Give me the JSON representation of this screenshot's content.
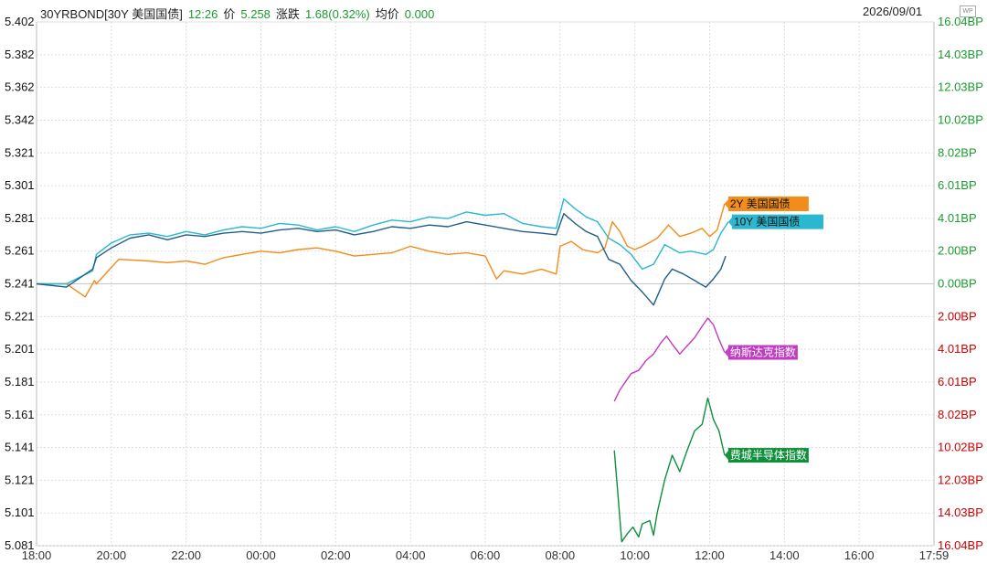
{
  "header": {
    "symbol": "30YRBOND[30Y 美国国债]",
    "time": "12:26",
    "price_label": "价",
    "price": "5.258",
    "change_label": "涨跌",
    "change": "1.68(0.32%)",
    "avg_label": "均价",
    "avg": "0.000",
    "date": "2026/09/01"
  },
  "icons": {
    "corner": "wp-icon"
  },
  "colors": {
    "up_axis": "#1a9c2e",
    "down_axis": "#cc0000",
    "left_axis": "#111111",
    "2y": "#f28c1a",
    "10y": "#2bb7cf",
    "30y": "#1f5f87",
    "ndx": "#c03cc0",
    "sox": "#0f8f3a"
  },
  "chart_data": {
    "type": "line",
    "x_ticks": [
      "18:00",
      "20:00",
      "22:00",
      "00:00",
      "02:00",
      "04:00",
      "06:00",
      "08:00",
      "10:00",
      "12:00",
      "14:00",
      "16:00",
      "17:59"
    ],
    "left_axis": {
      "ticks": [
        "5.402",
        "5.382",
        "5.362",
        "5.342",
        "5.321",
        "5.301",
        "5.281",
        "5.261",
        "5.241",
        "5.221",
        "5.201",
        "5.181",
        "5.161",
        "5.141",
        "5.121",
        "5.101",
        "5.081"
      ],
      "range": [
        5.081,
        5.402
      ],
      "baseline": 5.241
    },
    "right_axis": {
      "ticks": [
        "16.04BP",
        "14.03BP",
        "12.03BP",
        "10.02BP",
        "8.02BP",
        "6.01BP",
        "4.01BP",
        "2.00BP",
        "0.00BP",
        "2.00BP",
        "4.01BP",
        "6.01BP",
        "8.02BP",
        "10.02BP",
        "12.03BP",
        "14.03BP",
        "16.04BP"
      ],
      "range": [
        -16.04,
        16.04
      ]
    },
    "series": [
      {
        "key": "2y",
        "name": "2Y 美国国债",
        "x": [
          18.0,
          18.8,
          19.3,
          19.55,
          19.6,
          20.0,
          20.2,
          21.0,
          21.5,
          22.0,
          22.5,
          23.0,
          23.5,
          0.0,
          0.5,
          1.0,
          1.5,
          2.0,
          2.5,
          3.0,
          3.5,
          4.0,
          4.5,
          5.0,
          5.5,
          6.0,
          6.3,
          6.5,
          7.0,
          7.5,
          7.9,
          8.0,
          8.3,
          8.6,
          9.0,
          9.2,
          9.4,
          9.6,
          9.8,
          10.0,
          10.3,
          10.6,
          10.9,
          11.2,
          11.5,
          11.8,
          12.0,
          12.2,
          12.4
        ],
        "y": [
          0.0,
          0.0,
          -0.8,
          0.2,
          0.0,
          1.0,
          1.5,
          1.4,
          1.3,
          1.4,
          1.2,
          1.6,
          1.8,
          2.0,
          1.9,
          2.1,
          2.2,
          2.0,
          1.7,
          1.8,
          1.9,
          2.3,
          2.0,
          1.8,
          1.9,
          1.7,
          0.3,
          0.8,
          0.6,
          0.9,
          0.6,
          2.3,
          2.6,
          2.1,
          1.9,
          2.2,
          3.8,
          3.2,
          2.3,
          2.1,
          2.4,
          2.8,
          3.6,
          2.9,
          3.1,
          3.4,
          2.9,
          3.3,
          4.9
        ]
      },
      {
        "key": "10y",
        "name": "10Y 美国国债",
        "x": [
          18.0,
          18.8,
          19.5,
          19.6,
          20.0,
          20.5,
          21.0,
          21.5,
          22.0,
          22.5,
          23.0,
          23.5,
          0.0,
          0.5,
          1.0,
          1.5,
          2.0,
          2.5,
          3.0,
          3.5,
          4.0,
          4.5,
          5.0,
          5.5,
          6.0,
          6.5,
          7.0,
          7.5,
          7.9,
          8.1,
          8.4,
          8.7,
          9.0,
          9.3,
          9.6,
          9.9,
          10.2,
          10.5,
          10.8,
          11.2,
          11.5,
          11.9,
          12.1,
          12.3,
          12.5
        ],
        "y": [
          0.0,
          0.0,
          0.8,
          1.8,
          2.5,
          3.0,
          3.1,
          2.9,
          3.2,
          3.0,
          3.3,
          3.5,
          3.4,
          3.7,
          3.6,
          3.3,
          3.5,
          3.2,
          3.6,
          3.9,
          3.8,
          4.1,
          4.0,
          4.4,
          4.2,
          4.3,
          3.7,
          3.5,
          3.4,
          5.2,
          4.6,
          4.1,
          3.8,
          2.8,
          2.4,
          1.8,
          0.9,
          1.2,
          2.4,
          1.9,
          2.0,
          1.8,
          2.1,
          3.1,
          3.8
        ]
      },
      {
        "key": "30y",
        "name": "30Y 美国国债",
        "x": [
          18.0,
          18.8,
          19.5,
          19.6,
          20.0,
          20.5,
          21.0,
          21.5,
          22.0,
          22.5,
          23.0,
          23.5,
          0.0,
          0.5,
          1.0,
          1.5,
          2.0,
          2.5,
          3.0,
          3.5,
          4.0,
          4.5,
          5.0,
          5.5,
          6.0,
          6.5,
          7.0,
          7.5,
          7.9,
          8.1,
          8.4,
          8.7,
          9.0,
          9.3,
          9.6,
          9.9,
          10.2,
          10.5,
          10.8,
          11.0,
          11.3,
          11.6,
          11.9,
          12.1,
          12.3,
          12.43
        ],
        "y": [
          0.0,
          -0.2,
          0.9,
          1.6,
          2.2,
          2.8,
          3.0,
          2.7,
          3.0,
          2.9,
          3.1,
          3.2,
          3.1,
          3.3,
          3.4,
          3.2,
          3.3,
          3.0,
          3.2,
          3.5,
          3.4,
          3.6,
          3.5,
          3.8,
          3.6,
          3.4,
          3.2,
          3.1,
          3.0,
          4.3,
          3.7,
          3.2,
          2.9,
          1.5,
          1.2,
          0.2,
          -0.5,
          -1.3,
          0.3,
          0.9,
          0.6,
          0.2,
          -0.2,
          0.3,
          0.9,
          1.7
        ]
      },
      {
        "key": "ndx",
        "name": "纳斯达克指数",
        "x": [
          9.45,
          9.6,
          9.75,
          9.9,
          10.1,
          10.3,
          10.5,
          10.7,
          10.85,
          11.0,
          11.2,
          11.4,
          11.6,
          11.8,
          11.95,
          12.1,
          12.25,
          12.4
        ],
        "y": [
          -7.2,
          -6.5,
          -6.0,
          -5.5,
          -5.3,
          -4.7,
          -4.3,
          -3.6,
          -3.2,
          -3.7,
          -4.3,
          -3.8,
          -3.3,
          -2.6,
          -2.1,
          -2.5,
          -3.4,
          -4.2
        ]
      },
      {
        "key": "sox",
        "name": "费城半导体指数",
        "x": [
          9.45,
          9.55,
          9.65,
          9.8,
          9.95,
          10.1,
          10.2,
          10.4,
          10.5,
          10.6,
          10.8,
          11.0,
          11.2,
          11.4,
          11.6,
          11.8,
          11.95,
          12.1,
          12.25,
          12.4
        ],
        "y": [
          -10.2,
          -13.0,
          -15.8,
          -15.3,
          -14.9,
          -15.5,
          -14.7,
          -14.5,
          -15.4,
          -14.0,
          -12.0,
          -10.5,
          -11.5,
          -10.2,
          -9.0,
          -8.6,
          -7.0,
          -8.3,
          -9.0,
          -10.5
        ]
      }
    ]
  }
}
